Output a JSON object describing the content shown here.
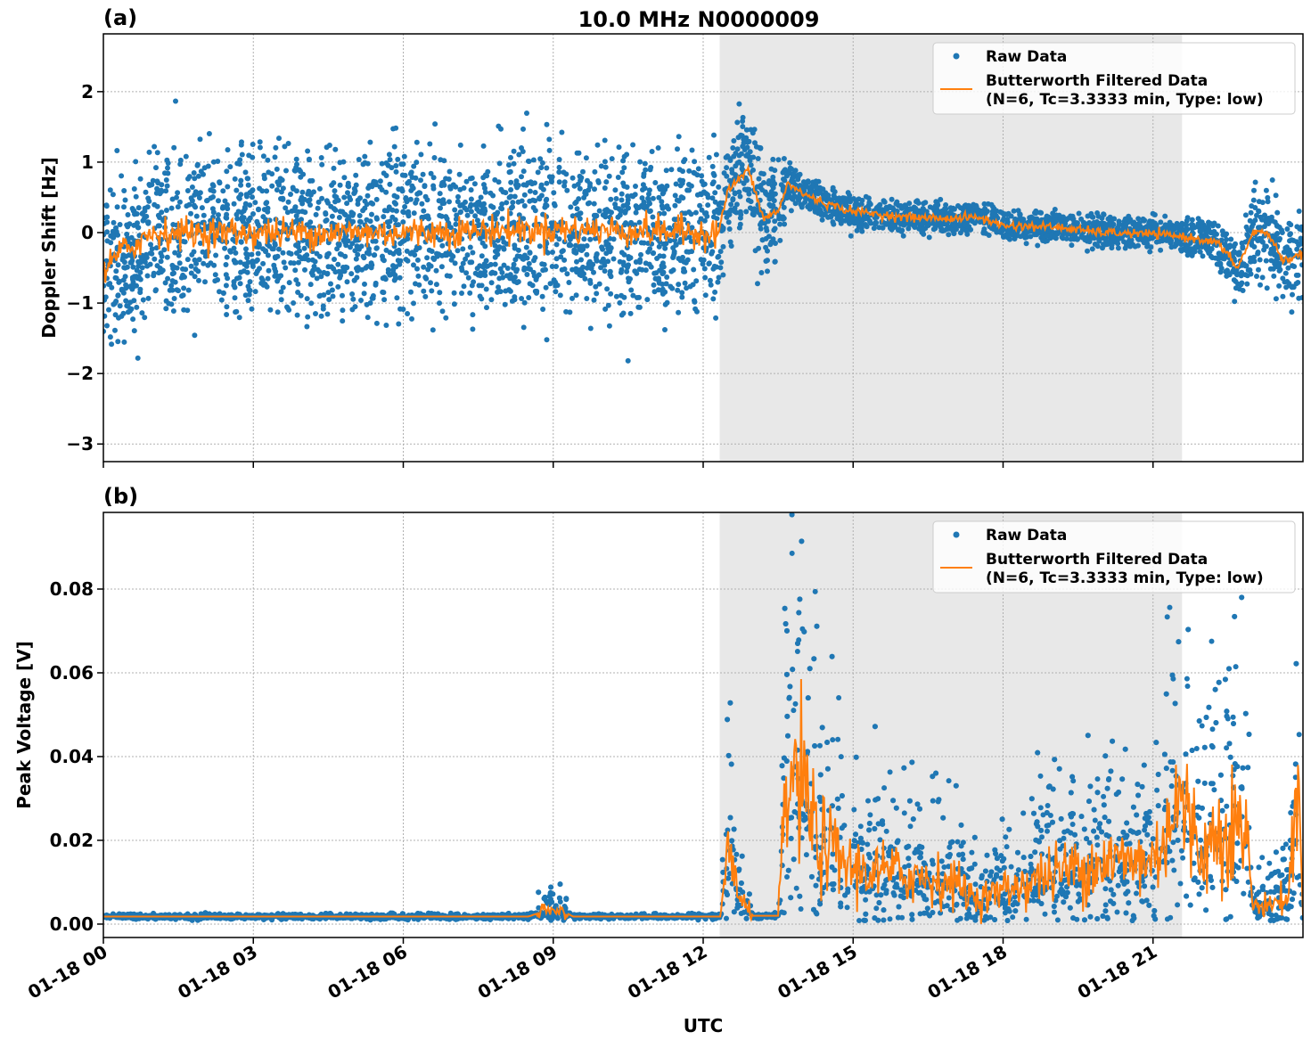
{
  "title": "10.0 MHz N0000009",
  "chart_data": [
    {
      "type": "scatter",
      "panel_label": "(a)",
      "ylabel": "Doppler Shift [Hz]",
      "xlim": [
        0,
        24
      ],
      "ylim": [
        -3.25,
        2.82
      ],
      "yticks": [
        2,
        1,
        0,
        -1,
        -2,
        -3
      ],
      "ytick_labels": [
        "2",
        "1",
        "0",
        "−1",
        "−2",
        "−3"
      ],
      "grid": true,
      "legend_placement": "top-right",
      "legend": [
        "Raw Data",
        "Butterworth Filtered Data",
        "(N=6, Tc=3.3333 min, Type: low)"
      ],
      "shaded_region_hours": [
        12.33,
        21.58
      ],
      "filtered_key_points": [
        [
          0,
          -0.6
        ],
        [
          0.3,
          -0.3
        ],
        [
          1,
          0
        ],
        [
          3,
          0
        ],
        [
          6,
          0
        ],
        [
          9,
          0.05
        ],
        [
          12.3,
          0
        ],
        [
          12.5,
          0.6
        ],
        [
          12.9,
          0.9
        ],
        [
          13.2,
          0.2
        ],
        [
          13.5,
          0.3
        ],
        [
          13.7,
          0.7
        ],
        [
          14,
          0.55
        ],
        [
          14.5,
          0.4
        ],
        [
          15,
          0.3
        ],
        [
          16,
          0.22
        ],
        [
          17,
          0.2
        ],
        [
          17.5,
          0.22
        ],
        [
          18,
          0.1
        ],
        [
          19,
          0.08
        ],
        [
          20,
          0
        ],
        [
          21,
          -0.02
        ],
        [
          21.5,
          -0.05
        ],
        [
          22,
          -0.1
        ],
        [
          22.3,
          -0.15
        ],
        [
          22.7,
          -0.5
        ],
        [
          23,
          0
        ],
        [
          23.3,
          0
        ],
        [
          23.6,
          -0.4
        ],
        [
          24,
          -0.3
        ]
      ],
      "raw_spread_key_points": [
        [
          0,
          0.8
        ],
        [
          9,
          0.8
        ],
        [
          12.3,
          0.85
        ],
        [
          12.4,
          0.5
        ],
        [
          13.5,
          0.6
        ],
        [
          13.7,
          0.2
        ],
        [
          14,
          0.17
        ],
        [
          21.5,
          0.15
        ],
        [
          22.5,
          0.25
        ],
        [
          23,
          0.45
        ],
        [
          24,
          0.45
        ]
      ]
    },
    {
      "type": "scatter",
      "panel_label": "(b)",
      "ylabel": "Peak Voltage [V]",
      "xlabel": "UTC",
      "xlim": [
        0,
        24
      ],
      "ylim": [
        -0.0032,
        0.0983
      ],
      "yticks": [
        0,
        0.02,
        0.04,
        0.06,
        0.08
      ],
      "ytick_labels": [
        "0.00",
        "0.02",
        "0.04",
        "0.06",
        "0.08"
      ],
      "xticks_hours": [
        0,
        3,
        6,
        9,
        12,
        15,
        18,
        21
      ],
      "xtick_labels": [
        "01-18 00",
        "01-18 03",
        "01-18 06",
        "01-18 09",
        "01-18 12",
        "01-18 15",
        "01-18 18",
        "01-18 21"
      ],
      "grid": true,
      "legend_placement": "top-right",
      "legend": [
        "Raw Data",
        "Butterworth Filtered Data",
        "(N=6, Tc=3.3333 min, Type: low)"
      ],
      "shaded_region_hours": [
        12.33,
        21.58
      ],
      "filtered_key_points": [
        [
          0,
          0.0018
        ],
        [
          8.5,
          0.0018
        ],
        [
          8.8,
          0.003
        ],
        [
          9.2,
          0.003
        ],
        [
          9.4,
          0.0018
        ],
        [
          12.35,
          0.0018
        ],
        [
          12.5,
          0.021
        ],
        [
          12.7,
          0.006
        ],
        [
          13,
          0.002
        ],
        [
          13.5,
          0.002
        ],
        [
          13.65,
          0.03
        ],
        [
          13.9,
          0.035
        ],
        [
          14.3,
          0.02
        ],
        [
          15,
          0.013
        ],
        [
          16,
          0.012
        ],
        [
          17,
          0.01
        ],
        [
          17.5,
          0.006
        ],
        [
          18,
          0.008
        ],
        [
          19,
          0.012
        ],
        [
          20,
          0.015
        ],
        [
          21,
          0.015
        ],
        [
          21.5,
          0.03
        ],
        [
          22,
          0.017
        ],
        [
          22.5,
          0.025
        ],
        [
          22.9,
          0.02
        ],
        [
          23,
          0.004
        ],
        [
          23.7,
          0.006
        ],
        [
          23.9,
          0.033
        ],
        [
          24,
          0.002
        ]
      ],
      "raw_spread_fraction": 0.6,
      "colors": {
        "raw": "#1f77b4",
        "filtered": "#ff7f0e",
        "shade": "#e8e8e8"
      }
    }
  ]
}
